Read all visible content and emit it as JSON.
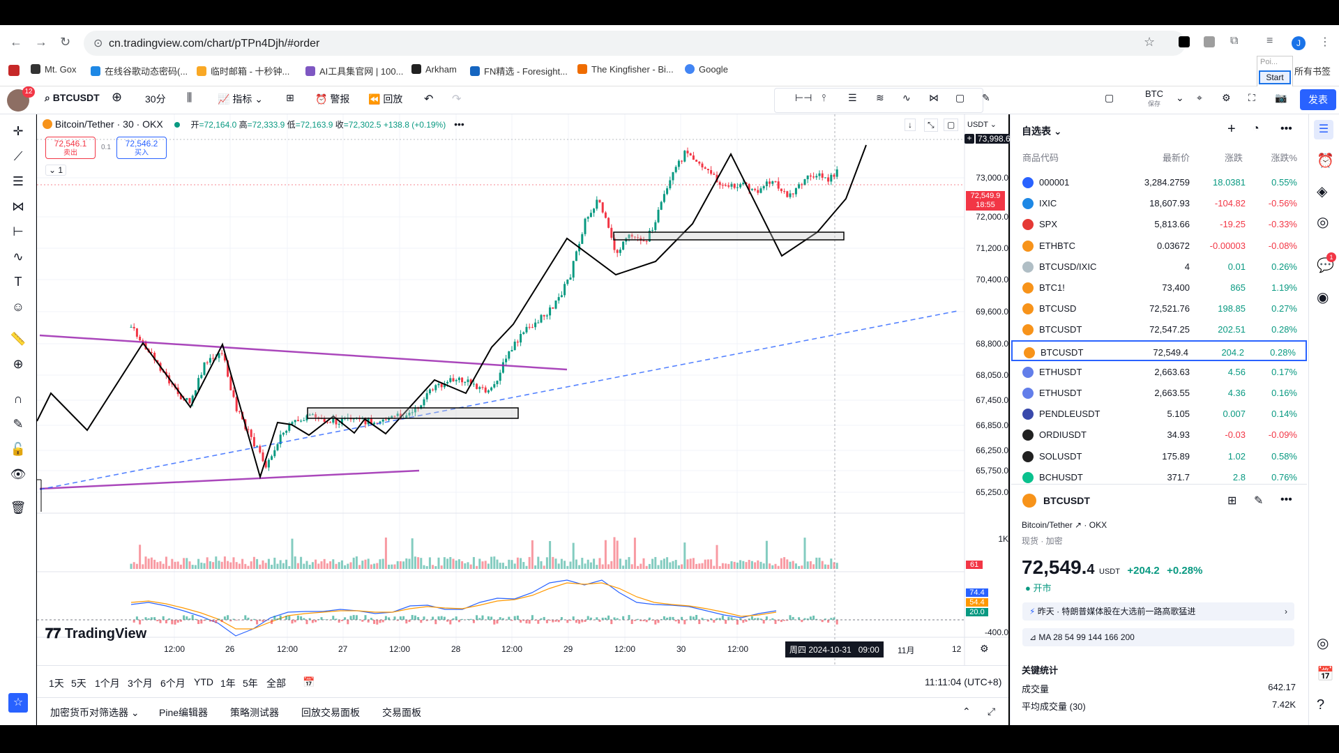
{
  "browser": {
    "url": "cn.tradingview.com/chart/pTPn4Djh/#order",
    "bookmarks": [
      "Mt. Gox",
      "在线谷歌动态密码(...",
      "临时邮箱 - 十秒钟...",
      "AI工具集官网 | 100...",
      "Arkham",
      "FN精选 - Foresight...",
      "The Kingfisher - Bi...",
      "Google"
    ],
    "all_bookmarks": "所有书签",
    "popup_text": "Poi...",
    "popup_button": "Start",
    "avatar_letter": "J"
  },
  "toolbar": {
    "symbol": "BTCUSDT",
    "interval": "30分",
    "indicators": "指标",
    "alerts": "警报",
    "replay": "回放",
    "currency_top": "BTC",
    "currency_sub": "保存",
    "publish": "发表",
    "notif_count": "12"
  },
  "legend": {
    "title": "Bitcoin/Tether · 30 · OKX",
    "open_label": "开",
    "open": "=72,164.0",
    "high_label": "高",
    "high": "=72,333.9",
    "low_label": "低",
    "low": "=72,163.9",
    "close_label": "收",
    "close": "=72,302.5",
    "change": "+138.8 (+0.19%)",
    "sell_price": "72,546.1",
    "sell_label": "卖出",
    "spread": "0.1",
    "buy_price": "72,546.2",
    "buy_label": "买入",
    "layer": "1"
  },
  "axis": {
    "currency": "USDT",
    "top_label": "73,998.6",
    "price_ticks": [
      "73,000.0",
      "72,000.0",
      "71,200.0",
      "70,400.0",
      "69,600.0",
      "68,800.0",
      "68,050.0",
      "67,450.0",
      "66,850.0",
      "66,250.0",
      "65,750.0",
      "65,250.0"
    ],
    "current_price": "72,549.9",
    "countdown": "18:55",
    "volume_tick": "1K",
    "volume_value": "61",
    "ind_values": [
      "74.4",
      "54.4",
      "20.0"
    ],
    "ind_low": "-400.0",
    "time_ticks": [
      "12:00",
      "26",
      "12:00",
      "27",
      "12:00",
      "28",
      "12:00",
      "29",
      "12:00",
      "30",
      "12:00",
      "11月",
      "12"
    ],
    "crosshair_time": "周四 2024-10-31   09:00"
  },
  "logo": "TradingView",
  "ranges": [
    "1天",
    "5天",
    "1个月",
    "3个月",
    "6个月",
    "YTD",
    "1年",
    "5年",
    "全部"
  ],
  "clock": "11:11:04 (UTC+8)",
  "bottom_tabs": [
    "加密货币对筛选器",
    "Pine编辑器",
    "策略测试器",
    "回放交易面板",
    "交易面板"
  ],
  "watchlist": {
    "title": "自选表",
    "headers": [
      "商品代码",
      "最新价",
      "涨跌",
      "涨跌%"
    ],
    "rows": [
      {
        "sym": "000001",
        "last": "3,284.2759",
        "chg": "18.0381",
        "pct": "0.55%",
        "color": "#2962ff",
        "dir": "pos"
      },
      {
        "sym": "IXIC",
        "last": "18,607.93",
        "chg": "-104.82",
        "pct": "-0.56%",
        "color": "#1e88e5",
        "dir": "neg"
      },
      {
        "sym": "SPX",
        "last": "5,813.66",
        "chg": "-19.25",
        "pct": "-0.33%",
        "color": "#e53935",
        "dir": "neg"
      },
      {
        "sym": "ETHBTC",
        "last": "0.03672",
        "chg": "-0.00003",
        "pct": "-0.08%",
        "color": "#f7931a",
        "dir": "neg"
      },
      {
        "sym": "BTCUSD/IXIC",
        "last": "4",
        "chg": "0.01",
        "pct": "0.26%",
        "color": "#b0bec5",
        "dir": "pos"
      },
      {
        "sym": "BTC1!",
        "last": "73,400",
        "chg": "865",
        "pct": "1.19%",
        "color": "#f7931a",
        "dir": "pos"
      },
      {
        "sym": "BTCUSD",
        "last": "72,521.76",
        "chg": "198.85",
        "pct": "0.27%",
        "color": "#f7931a",
        "dir": "pos"
      },
      {
        "sym": "BTCUSDT",
        "last": "72,547.25",
        "chg": "202.51",
        "pct": "0.28%",
        "color": "#f7931a",
        "dir": "pos"
      },
      {
        "sym": "BTCUSDT",
        "last": "72,549.4",
        "chg": "204.2",
        "pct": "0.28%",
        "color": "#f7931a",
        "dir": "pos"
      },
      {
        "sym": "ETHUSDT",
        "last": "2,663.63",
        "chg": "4.56",
        "pct": "0.17%",
        "color": "#627eea",
        "dir": "pos"
      },
      {
        "sym": "ETHUSDT",
        "last": "2,663.55",
        "chg": "4.36",
        "pct": "0.16%",
        "color": "#627eea",
        "dir": "pos"
      },
      {
        "sym": "PENDLEUSDT",
        "last": "5.105",
        "chg": "0.007",
        "pct": "0.14%",
        "color": "#3949ab",
        "dir": "pos"
      },
      {
        "sym": "ORDIUSDT",
        "last": "34.93",
        "chg": "-0.03",
        "pct": "-0.09%",
        "color": "#212121",
        "dir": "neg"
      },
      {
        "sym": "SOLUSDT",
        "last": "175.89",
        "chg": "1.02",
        "pct": "0.58%",
        "color": "#212121",
        "dir": "pos"
      },
      {
        "sym": "BCHUSDT",
        "last": "371.7",
        "chg": "2.8",
        "pct": "0.76%",
        "color": "#0ac18e",
        "dir": "pos"
      }
    ]
  },
  "details": {
    "symbol": "BTCUSDT",
    "name": "Bitcoin/Tether",
    "exchange": "OKX",
    "category": "现货 · 加密",
    "price": "72,549.",
    "price_last": "4",
    "unit": "USDT",
    "change": "+204.2",
    "change_pct": "+0.28%",
    "status": "开市",
    "news": "昨天 · 特朗普媒体股在大选前一路高歌猛进",
    "ma": "MA 28 54 99 144 166 200",
    "stats_title": "关键统计",
    "volume_label": "成交量",
    "volume": "642.17",
    "avg_volume_label": "平均成交量 (30)",
    "avg_volume": "7.42K"
  }
}
